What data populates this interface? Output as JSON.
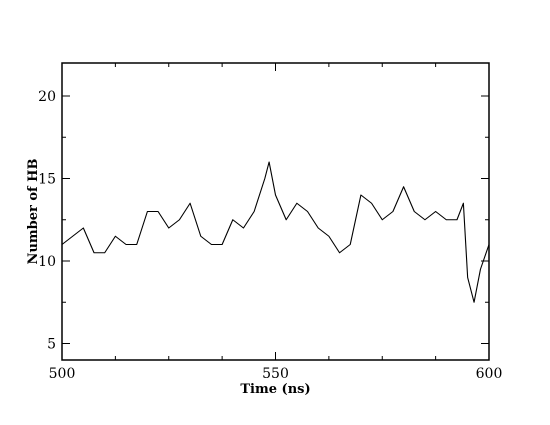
{
  "chart_data": {
    "type": "line",
    "title": "",
    "xlabel": "Time (ns)",
    "ylabel": "Number of HB",
    "xlim": [
      500,
      600
    ],
    "ylim": [
      4,
      22
    ],
    "xticks": [
      500,
      550,
      600
    ],
    "xtick_labels": [
      "500",
      "550",
      "600"
    ],
    "yticks": [
      5,
      10,
      15,
      20
    ],
    "ytick_labels": [
      "5",
      "10",
      "15",
      "20"
    ],
    "grid": false,
    "legend": "none",
    "line_color": "#000000",
    "series": [
      {
        "x": [
          500,
          502.5,
          505,
          507.5,
          510,
          512.5,
          515,
          517.5,
          520,
          522.5,
          525,
          527.5,
          530,
          532.5,
          535,
          537.5,
          540,
          542.5,
          545,
          547.5,
          548.5,
          550,
          552.5,
          555,
          557.5,
          560,
          562.5,
          565,
          567.5,
          570,
          572.5,
          575,
          577.5,
          580,
          582.5,
          585,
          587.5,
          590,
          592.5,
          594,
          595,
          596.5,
          598,
          600
        ],
        "y": [
          11,
          11.5,
          12,
          10.5,
          10.5,
          11.5,
          11,
          11,
          13,
          13,
          12,
          12.5,
          13.5,
          11.5,
          11,
          11,
          12.5,
          12,
          13,
          15,
          16,
          14,
          12.5,
          13.5,
          13,
          12,
          11.5,
          10.5,
          11,
          14,
          13.5,
          12.5,
          13,
          14.5,
          13,
          12.5,
          13,
          12.5,
          12.5,
          13.5,
          9,
          7.5,
          9.5,
          11
        ]
      }
    ]
  }
}
